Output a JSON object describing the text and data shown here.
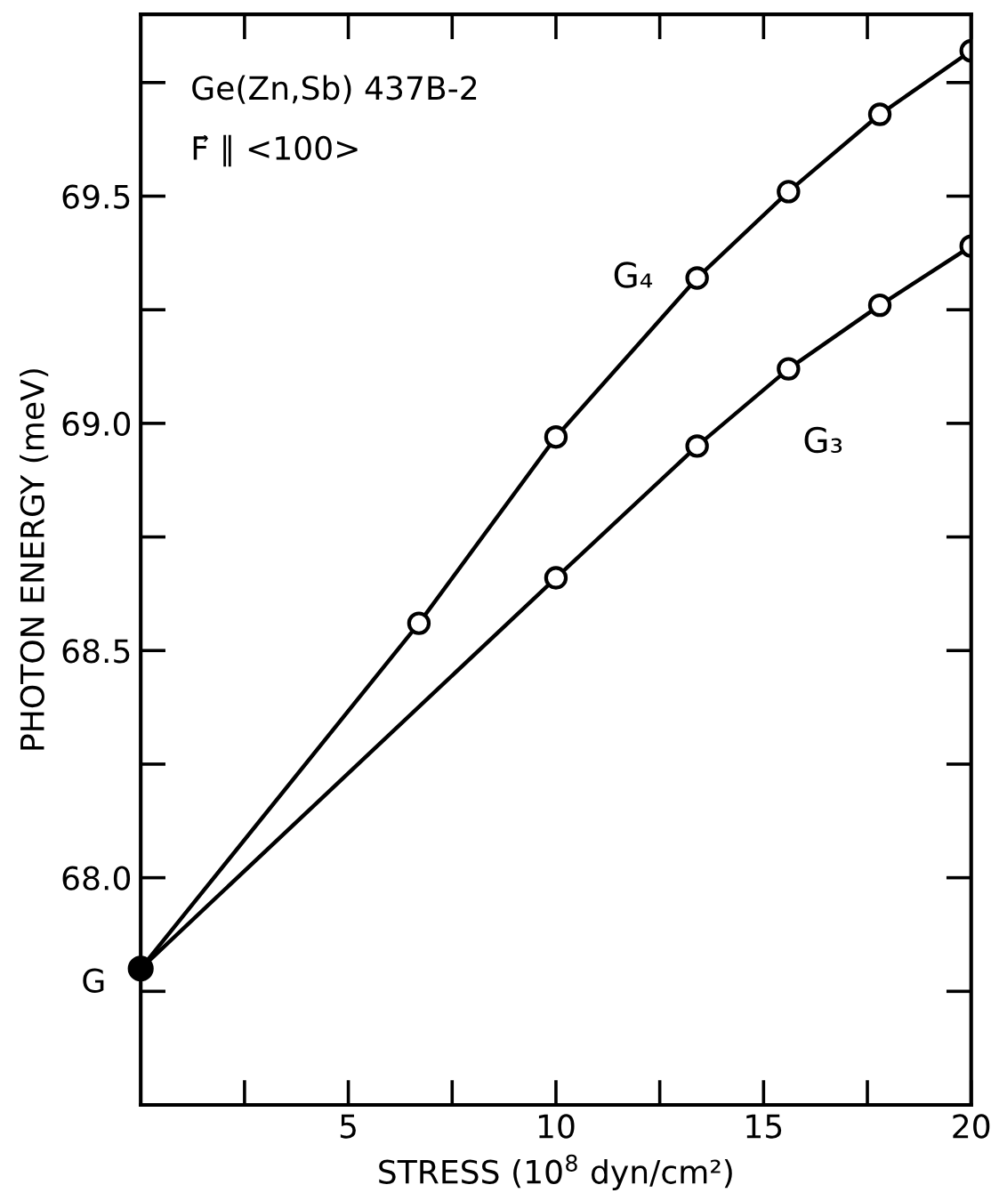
{
  "chart_data": {
    "type": "line",
    "xlabel": "STRESS (10$^{8}$ dyn/cm²)",
    "ylabel": "PHOTON ENERGY (meV)",
    "xlim": [
      0,
      20
    ],
    "ylim": [
      67.5,
      69.9
    ],
    "xticks": [
      {
        "value": 2.5,
        "label": null
      },
      5,
      {
        "value": 7.5,
        "label": null
      },
      10,
      {
        "value": 12.5,
        "label": null
      },
      15,
      {
        "value": 17.5,
        "label": null
      },
      20
    ],
    "yticks": [
      {
        "value": 67.75,
        "label": null
      },
      {
        "value": 68,
        "label": "68.0"
      },
      {
        "value": 68.25,
        "label": null
      },
      {
        "value": 68.5,
        "label": "68.5"
      },
      {
        "value": 68.75,
        "label": null
      },
      {
        "value": 69,
        "label": "69.0"
      },
      {
        "value": 69.25,
        "label": null
      },
      {
        "value": 69.5,
        "label": "69.5"
      },
      {
        "value": 69.75,
        "label": null
      }
    ],
    "marker": "circle",
    "grid": false,
    "legend": false,
    "series": [
      {
        "name": "G₄",
        "color": "#000000",
        "x": [
          0,
          6.7,
          10,
          13.4,
          15.6,
          17.8,
          20
        ],
        "values": [
          67.8,
          68.56,
          68.97,
          69.32,
          69.51,
          69.68,
          69.82
        ]
      },
      {
        "name": "G₃",
        "color": "#000000",
        "x": [
          0,
          10,
          13.4,
          15.6,
          17.8,
          20
        ],
        "values": [
          67.8,
          68.66,
          68.95,
          69.12,
          69.26,
          69.39
        ]
      },
      {
        "type": "scatter",
        "color": "#000000",
        "x": [
          0
        ],
        "values": [
          67.8
        ]
      }
    ],
    "annotations": [
      {
        "text": "G",
        "x": 0,
        "y": 67.8
      },
      "Ge(Zn,Sb) 437B-2",
      "F⃗ ∥ <100>"
    ]
  }
}
